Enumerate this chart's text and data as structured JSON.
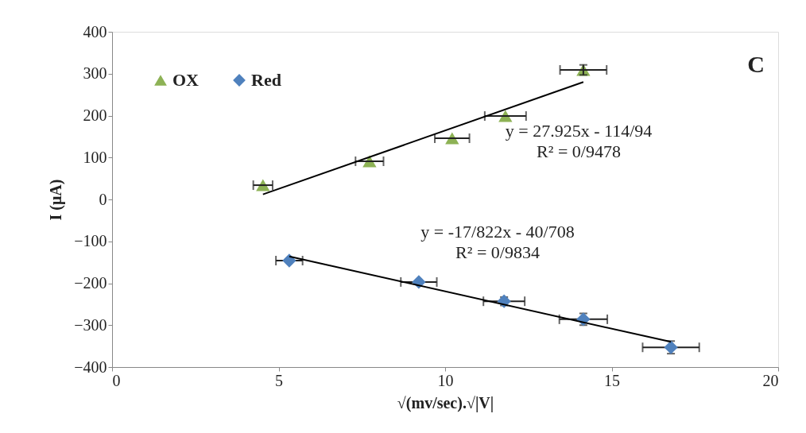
{
  "chart_data": {
    "type": "scatter",
    "xlabel": "√(mv/sec).√|V|",
    "ylabel": "I (μA)",
    "xlim": [
      0,
      20
    ],
    "xticks": [
      0,
      5,
      10,
      15,
      20
    ],
    "ylim": [
      -400,
      400
    ],
    "yticks": [
      -400,
      -300,
      -200,
      -100,
      0,
      100,
      200,
      300,
      400
    ],
    "grid": false,
    "legend": "top left",
    "series": [
      {
        "name": "OX",
        "color": "#8db255",
        "marker": "triangle",
        "x": [
          4.53,
          7.73,
          10.21,
          11.81,
          14.15
        ],
        "values": [
          34,
          91,
          146,
          199,
          309
        ],
        "xerrors": [
          0.29,
          0.42,
          0.52,
          0.62,
          0.7
        ],
        "errors": [
          null,
          null,
          null,
          null,
          12
        ]
      },
      {
        "name": "Red",
        "color": "#4f81bd",
        "marker": "diamond",
        "x": [
          5.32,
          9.21,
          11.77,
          14.15,
          16.78
        ],
        "values": [
          -146,
          -197,
          -243,
          -286,
          -353
        ],
        "xerrors": [
          0.4,
          0.54,
          0.62,
          0.72,
          0.85
        ],
        "errors": [
          null,
          null,
          10,
          14,
          15
        ]
      },
      {
        "type": "line",
        "color": "#000000",
        "marker": "none",
        "x": [
          4.53,
          14.15
        ],
        "values": [
          12,
          280
        ]
      },
      {
        "type": "line",
        "color": "#000000",
        "marker": "none",
        "x": [
          5.32,
          16.78
        ],
        "values": [
          -136,
          -340
        ]
      }
    ],
    "annotations": [
      "y = 27.925x - 114/94\nR² = 0/9478",
      "y = -17/822x - 40/708\nR² = 0/9834",
      "C"
    ]
  }
}
